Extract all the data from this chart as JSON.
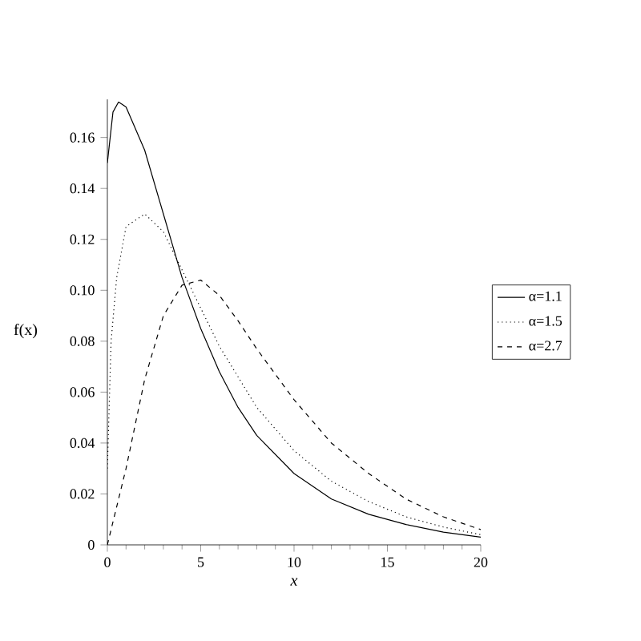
{
  "chart_data": {
    "type": "line",
    "xlabel": "x",
    "ylabel": "f(x)",
    "xlim": [
      0,
      20
    ],
    "ylim": [
      0,
      0.175
    ],
    "xticks": [
      0,
      5,
      10,
      15,
      20
    ],
    "yticks": [
      0,
      0.02,
      0.04,
      0.06,
      0.08,
      {
        "value": 0.1,
        "label": "0.10"
      },
      0.12,
      0.14,
      0.16
    ],
    "legend": "right",
    "grid": false,
    "marker": "none",
    "series": [
      {
        "name": "α=1.1",
        "color": "#000000",
        "line_style": "solid",
        "x": [
          0,
          0.3,
          0.6,
          1,
          2,
          3,
          4,
          5,
          6,
          7,
          8,
          10,
          12,
          14,
          16,
          18,
          20
        ],
        "values": [
          0.15,
          0.17,
          0.174,
          0.172,
          0.155,
          0.13,
          0.105,
          0.085,
          0.068,
          0.054,
          0.043,
          0.028,
          0.018,
          0.012,
          0.008,
          0.005,
          0.003
        ]
      },
      {
        "name": "α=1.5",
        "color": "#000000",
        "line_style": "dotted",
        "x": [
          0,
          0.2,
          0.5,
          1,
          2,
          3,
          4,
          5,
          6,
          7,
          8,
          10,
          12,
          14,
          16,
          18,
          20
        ],
        "values": [
          0.03,
          0.08,
          0.105,
          0.125,
          0.13,
          0.123,
          0.108,
          0.093,
          0.078,
          0.066,
          0.054,
          0.037,
          0.025,
          0.017,
          0.011,
          0.007,
          0.004
        ]
      },
      {
        "name": "α=2.7",
        "color": "#000000",
        "line_style": "dashed",
        "x": [
          0,
          1,
          2,
          3,
          4,
          5,
          6,
          7,
          8,
          10,
          12,
          14,
          16,
          18,
          20
        ],
        "values": [
          0,
          0.03,
          0.065,
          0.09,
          0.102,
          0.104,
          0.098,
          0.088,
          0.077,
          0.057,
          0.04,
          0.028,
          0.018,
          0.011,
          0.006
        ]
      }
    ]
  }
}
